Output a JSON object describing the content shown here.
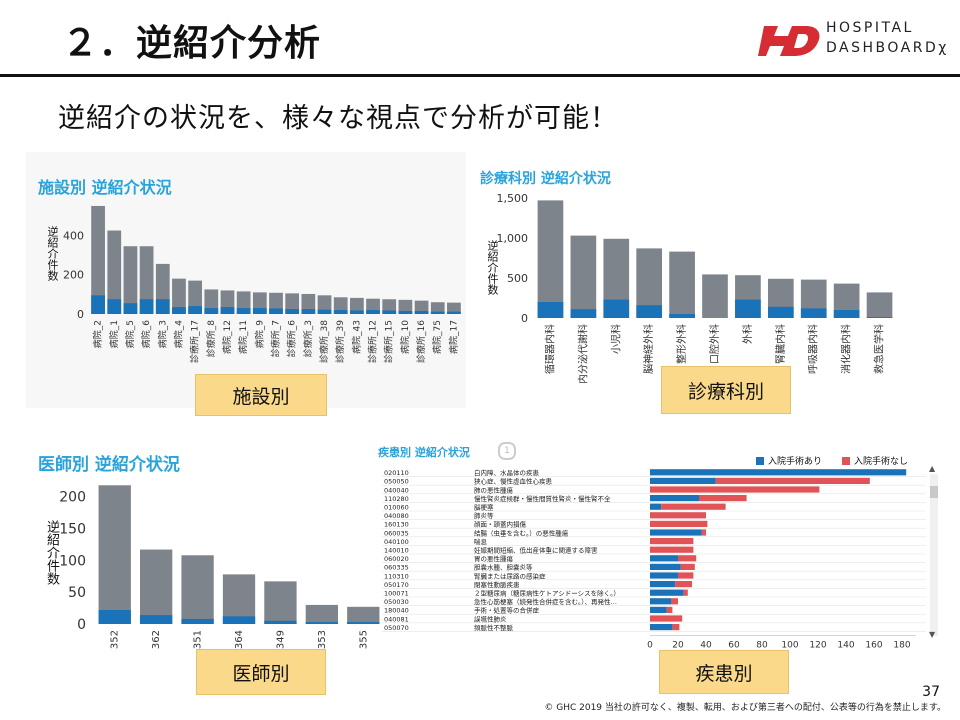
{
  "title": "２．逆紹介分析",
  "logo": {
    "line1": "HOSPITAL",
    "line2": "DASHBOARDχ"
  },
  "subtitle": "逆紹介の状況を、様々な視点で分析が可能！",
  "colors": {
    "gray": "#7e848c",
    "blue": "#1a72b8",
    "red": "#e05458",
    "title_blue": "#29a3dc",
    "caption_bg": "#fad98a"
  },
  "facility": {
    "title": "施設別 逆紹介状況",
    "ylabel": "逆紹介件数",
    "caption": "施設別",
    "chart_data": {
      "type": "bar",
      "ylim": [
        0,
        560
      ],
      "yticks": [
        0,
        200,
        400
      ],
      "categories": [
        "病院_2",
        "病院_1",
        "病院_5",
        "病院_6",
        "病院_3",
        "病院_4",
        "診療所_17",
        "診療所_8",
        "病院_12",
        "病院_11",
        "病院_9",
        "診療所_7",
        "診療所_6",
        "診療所_3",
        "診療所_38",
        "診療所_39",
        "病院_43",
        "診療所_12",
        "診療所_15",
        "病院_10",
        "診療所_16",
        "病院_75",
        "病院_17"
      ],
      "series": [
        {
          "values": [
            550,
            425,
            345,
            345,
            255,
            180,
            170,
            125,
            120,
            115,
            110,
            108,
            105,
            102,
            95,
            85,
            82,
            78,
            75,
            72,
            68,
            60,
            58
          ]
        },
        {
          "values": [
            95,
            75,
            55,
            75,
            75,
            35,
            40,
            30,
            35,
            30,
            30,
            28,
            25,
            25,
            22,
            20,
            18,
            20,
            18,
            15,
            15,
            12,
            12
          ]
        }
      ]
    }
  },
  "dept": {
    "title": "診療科別 逆紹介状況",
    "ylabel": "逆紹介件数",
    "caption": "診療科別",
    "chart_data": {
      "type": "bar",
      "ylim": [
        0,
        1500
      ],
      "yticks": [
        "0",
        "500",
        "1,000",
        "1,500"
      ],
      "ytick_values": [
        0,
        500,
        1000,
        1500
      ],
      "categories": [
        "循環器内科",
        "内分泌代謝科",
        "小児科",
        "脳神経外科",
        "整形外科",
        "口腔外科",
        "外科",
        "腎臓内科",
        "呼吸器内科",
        "消化器内科",
        "救急医学科"
      ],
      "series": [
        {
          "values": [
            1470,
            1030,
            990,
            870,
            830,
            545,
            535,
            490,
            480,
            430,
            320
          ]
        },
        {
          "values": [
            200,
            110,
            230,
            160,
            50,
            0,
            230,
            140,
            120,
            100,
            10
          ]
        }
      ]
    }
  },
  "doctor": {
    "title": "医師別 逆紹介状況",
    "ylabel": "逆紹介件数",
    "caption": "医師別",
    "chart_data": {
      "type": "bar",
      "ylim": [
        0,
        220
      ],
      "yticks": [
        0,
        50,
        100,
        150,
        200
      ],
      "categories": [
        "352",
        "362",
        "351",
        "364",
        "349",
        "353",
        "355"
      ],
      "series": [
        {
          "values": [
            218,
            117,
            108,
            78,
            67,
            30,
            27
          ]
        },
        {
          "values": [
            22,
            14,
            8,
            12,
            5,
            3,
            3
          ]
        }
      ]
    }
  },
  "disease": {
    "title": "疾患別 逆紹介状況",
    "caption": "疾患別",
    "legend": [
      "入院手術あり",
      "入院手術なし"
    ],
    "rows": [
      {
        "code": "020110",
        "name": "白内障、水晶体の疾患"
      },
      {
        "code": "050050",
        "name": "狭心症、慢性虚血性心疾患"
      },
      {
        "code": "040040",
        "name": "肺の悪性腫瘍"
      },
      {
        "code": "110280",
        "name": "慢性腎炎症候群・慢性間質性腎炎・慢性腎不全"
      },
      {
        "code": "010060",
        "name": "脳梗塞"
      },
      {
        "code": "040080",
        "name": "肺炎等"
      },
      {
        "code": "160130",
        "name": "顔面・頭蓋内損傷"
      },
      {
        "code": "060035",
        "name": "結腸（虫垂を含む。）の悪性腫瘍"
      },
      {
        "code": "040100",
        "name": "喘息"
      },
      {
        "code": "140010",
        "name": "妊娠期間短縮、低出産体重に関連する障害"
      },
      {
        "code": "060020",
        "name": "胃の悪性腫瘍"
      },
      {
        "code": "060335",
        "name": "胆嚢水腫、胆嚢炎等"
      },
      {
        "code": "110310",
        "name": "腎臓または尿路の感染症"
      },
      {
        "code": "050170",
        "name": "閉塞性動脈疾患"
      },
      {
        "code": "100071",
        "name": "２型糖尿病（糖尿病性ケトアシドーシスを除く。）"
      },
      {
        "code": "050030",
        "name": "急性心筋梗塞（続発性合併症を含む。）、再発性…"
      },
      {
        "code": "180040",
        "name": "手術・処置等の合併症"
      },
      {
        "code": "040081",
        "name": "誤嚥性肺炎"
      },
      {
        "code": "050070",
        "name": "頻脈性不整脈"
      }
    ],
    "chart_data": {
      "type": "bar",
      "orientation": "horizontal",
      "xlim": [
        0,
        190
      ],
      "xticks": [
        0,
        20,
        40,
        60,
        80,
        100,
        120,
        140,
        160,
        180
      ],
      "series": [
        {
          "name": "入院手術あり",
          "values": [
            183,
            47,
            0,
            35,
            8,
            0,
            0,
            37,
            0,
            0,
            20,
            22,
            20,
            18,
            24,
            15,
            12,
            0,
            16
          ]
        },
        {
          "name": "入院手術なし",
          "values": [
            0,
            110,
            121,
            34,
            46,
            40,
            41,
            3,
            31,
            31,
            13,
            10,
            11,
            12,
            3,
            5,
            4,
            23,
            5
          ]
        }
      ]
    }
  },
  "page_number": "37",
  "copyright": "© GHC 2019 当社の許可なく、複製、転用、および第三者への配付、公表等の行為を禁止します。"
}
